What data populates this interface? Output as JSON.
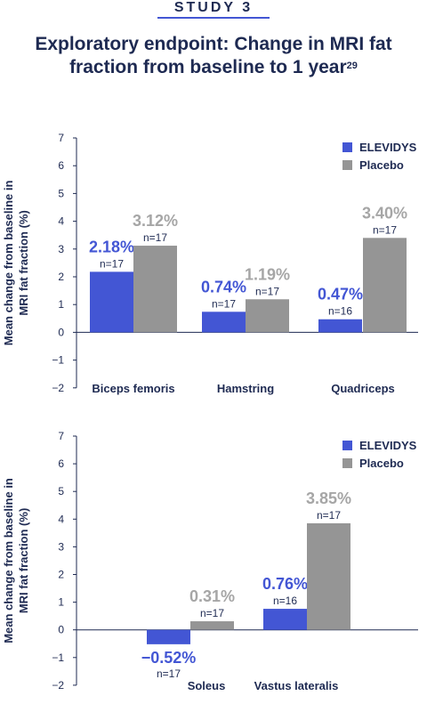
{
  "header": {
    "eyebrow": "STUDY 3",
    "title": "Exploratory endpoint: Change in MRI fat fraction from baseline to 1 year",
    "title_ref": "29"
  },
  "colors": {
    "elevidys": "#4356d4",
    "placebo": "#959595",
    "text": "#1e2a52",
    "pct_elevidys": "#4356d4",
    "pct_placebo": "#a6a6a6"
  },
  "chart_data": [
    {
      "type": "bar",
      "ylabel": "Mean change from baseline in MRI fat fraction (%)",
      "ylim": [
        -2,
        7
      ],
      "yticks": [
        "7",
        "6",
        "5",
        "4",
        "3",
        "2",
        "1",
        "0",
        "−1",
        "−2"
      ],
      "legend_position": "top-right",
      "categories": [
        "Biceps femoris",
        "Hamstring",
        "Quadriceps"
      ],
      "series": [
        {
          "name": "ELEVIDYS",
          "values": [
            2.18,
            0.74,
            0.47
          ],
          "labels": [
            "2.18%",
            "0.74%",
            "0.47%"
          ],
          "n": [
            "n=17",
            "n=17",
            "n=16"
          ]
        },
        {
          "name": "Placebo",
          "values": [
            3.12,
            1.19,
            3.4
          ],
          "labels": [
            "3.12%",
            "1.19%",
            "3.40%"
          ],
          "n": [
            "n=17",
            "n=17",
            "n=17"
          ]
        }
      ]
    },
    {
      "type": "bar",
      "ylabel": "Mean change from baseline in MRI fat fraction (%)",
      "ylim": [
        -2,
        7
      ],
      "yticks": [
        "7",
        "6",
        "5",
        "4",
        "3",
        "2",
        "1",
        "0",
        "−1",
        "−2"
      ],
      "legend_position": "top-right",
      "categories": [
        "Soleus",
        "Vastus lateralis"
      ],
      "series": [
        {
          "name": "ELEVIDYS",
          "values": [
            -0.52,
            0.76
          ],
          "labels": [
            "−0.52%",
            "0.76%"
          ],
          "n": [
            "n=17",
            "n=16"
          ]
        },
        {
          "name": "Placebo",
          "values": [
            0.31,
            3.85
          ],
          "labels": [
            "0.31%",
            "3.85%"
          ],
          "n": [
            "n=17",
            "n=17"
          ]
        }
      ]
    }
  ]
}
